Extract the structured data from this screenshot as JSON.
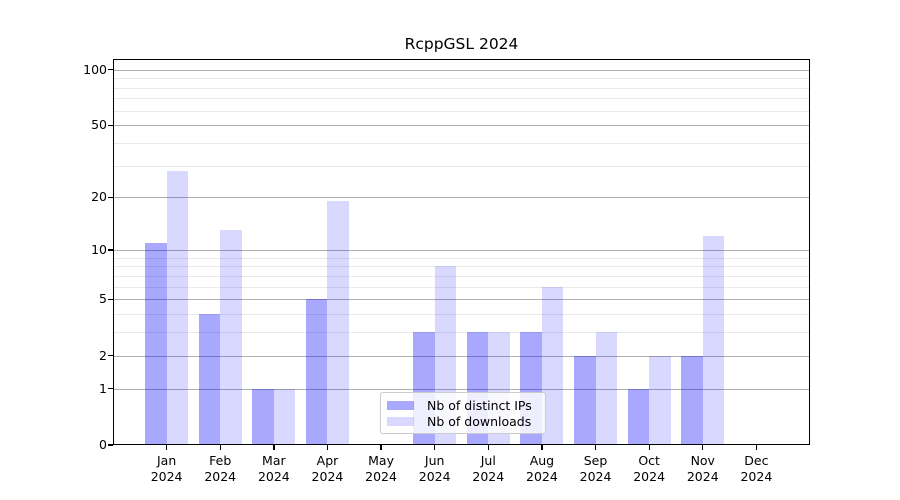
{
  "chart_data": {
    "type": "bar",
    "title": "RcppGSL 2024",
    "x_tick_line1": [
      "Jan",
      "Feb",
      "Mar",
      "Apr",
      "May",
      "Jun",
      "Jul",
      "Aug",
      "Sep",
      "Oct",
      "Nov",
      "Dec"
    ],
    "x_tick_line2": "2024",
    "categories": [
      "Jan 2024",
      "Feb 2024",
      "Mar 2024",
      "Apr 2024",
      "May 2024",
      "Jun 2024",
      "Jul 2024",
      "Aug 2024",
      "Sep 2024",
      "Oct 2024",
      "Nov 2024",
      "Dec 2024"
    ],
    "series": [
      {
        "name": "Nb of distinct IPs",
        "color": "rgba(0,0,255,0.34)",
        "values": [
          11,
          4,
          1,
          5,
          0,
          3,
          3,
          3,
          2,
          1,
          2,
          0
        ]
      },
      {
        "name": "Nb of downloads",
        "color": "rgba(0,0,255,0.15)",
        "values": [
          28,
          13,
          1,
          19,
          0,
          8,
          3,
          6,
          3,
          2,
          12,
          0
        ]
      }
    ],
    "y_scale": "log1p",
    "y_axis_ticks": [
      0,
      1,
      2,
      5,
      10,
      20,
      50,
      100
    ],
    "y_minor_gridlines": [
      3,
      4,
      6,
      7,
      8,
      9,
      30,
      40,
      60,
      70,
      80,
      90
    ],
    "ylim": [
      0,
      113
    ],
    "xlabel": "",
    "ylabel": "",
    "grid": true,
    "legend": {
      "position": "lower center",
      "entries": [
        "Nb of distinct IPs",
        "Nb of downloads"
      ]
    },
    "colors": {
      "major_grid": "#b0b0b0",
      "minor_grid": "#e9e9e9",
      "axis": "#000000",
      "background": "#ffffff",
      "legend_border": "#cccccc",
      "legend_background": "rgba(255,255,255,0.8)"
    }
  }
}
